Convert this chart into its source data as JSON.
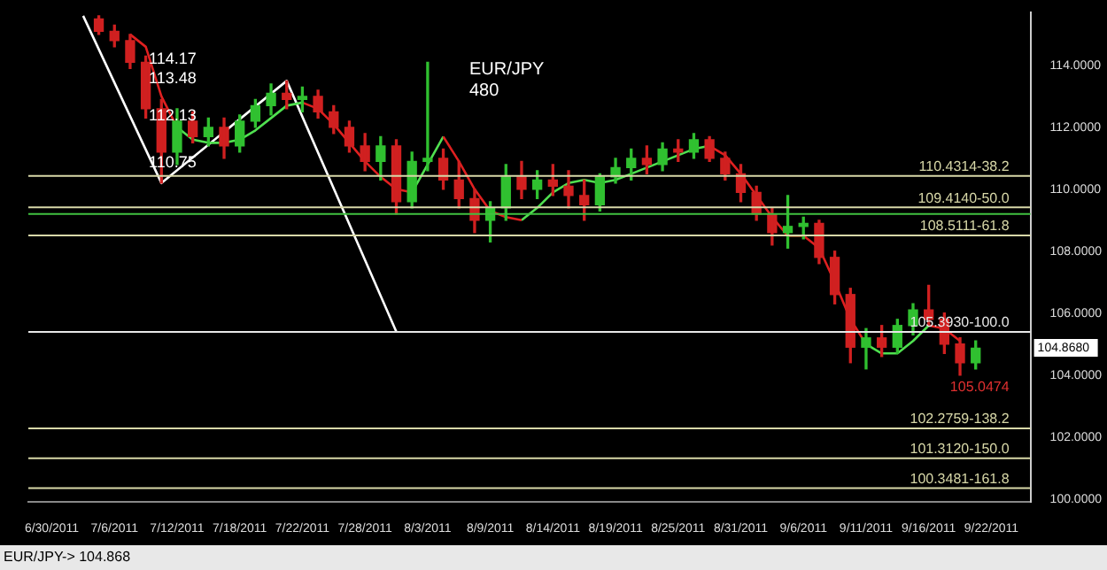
{
  "chart_data": {
    "type": "candlestick",
    "title": "EUR/JPY",
    "subtitle": "480",
    "categories": [
      null,
      "6/30/2011",
      null,
      null,
      null,
      "7/6/2011",
      null,
      null,
      null,
      "7/12/2011",
      null,
      null,
      null,
      "7/18/2011",
      null,
      null,
      null,
      "7/22/2011",
      null,
      null,
      null,
      "7/28/2011",
      null,
      null,
      null,
      "8/3/2011",
      null,
      null,
      null,
      "8/9/2011",
      null,
      null,
      null,
      "8/14/2011",
      null,
      null,
      null,
      "8/19/2011",
      null,
      null,
      null,
      "8/25/2011",
      null,
      null,
      null,
      "8/31/2011",
      null,
      null,
      null,
      "9/6/2011",
      null,
      null,
      null,
      "9/11/2011",
      null,
      null,
      null,
      "9/16/2011",
      null,
      null,
      null,
      "9/22/2011",
      null,
      null
    ],
    "ohlc": [
      null,
      null,
      null,
      null,
      [
        115.5,
        115.6,
        115.0,
        115.1
      ],
      [
        115.1,
        115.3,
        114.6,
        114.8
      ],
      [
        114.8,
        115.0,
        113.9,
        114.1
      ],
      [
        114.1,
        114.3,
        112.3,
        112.6
      ],
      [
        112.6,
        112.9,
        110.2,
        111.2
      ],
      [
        111.2,
        112.6,
        110.8,
        112.2
      ],
      [
        112.2,
        112.5,
        111.5,
        111.7
      ],
      [
        111.7,
        112.3,
        111.4,
        112.0
      ],
      [
        112.0,
        112.3,
        111.0,
        111.4
      ],
      [
        111.4,
        112.4,
        111.2,
        112.2
      ],
      [
        112.2,
        112.9,
        112.0,
        112.7
      ],
      [
        112.7,
        113.4,
        112.4,
        113.1
      ],
      [
        113.1,
        113.5,
        112.6,
        112.9
      ],
      [
        112.9,
        113.3,
        112.5,
        113.0
      ],
      [
        113.0,
        113.2,
        112.3,
        112.5
      ],
      [
        112.5,
        112.7,
        111.8,
        112.0
      ],
      [
        112.0,
        112.2,
        111.2,
        111.4
      ],
      [
        111.4,
        111.8,
        110.6,
        110.9
      ],
      [
        110.9,
        111.7,
        110.3,
        111.4
      ],
      [
        111.4,
        111.6,
        109.2,
        109.6
      ],
      [
        109.6,
        111.2,
        109.4,
        110.9
      ],
      [
        110.9,
        114.1,
        110.6,
        111.0
      ],
      [
        111.0,
        111.3,
        110.0,
        110.3
      ],
      [
        110.3,
        110.9,
        109.4,
        109.7
      ],
      [
        109.7,
        110.0,
        108.6,
        109.0
      ],
      [
        109.0,
        109.6,
        108.3,
        109.4
      ],
      [
        109.4,
        110.8,
        109.0,
        110.4
      ],
      [
        110.4,
        110.9,
        109.7,
        110.0
      ],
      [
        110.0,
        110.6,
        109.7,
        110.3
      ],
      [
        110.3,
        110.8,
        109.8,
        110.1
      ],
      [
        110.1,
        110.6,
        109.4,
        109.8
      ],
      [
        109.8,
        110.3,
        109.0,
        109.5
      ],
      [
        109.5,
        110.5,
        109.3,
        110.4
      ],
      [
        110.4,
        111.0,
        110.2,
        110.7
      ],
      [
        110.7,
        111.3,
        110.3,
        111.0
      ],
      [
        111.0,
        111.4,
        110.5,
        110.8
      ],
      [
        110.8,
        111.5,
        110.6,
        111.3
      ],
      [
        111.3,
        111.6,
        110.9,
        111.2
      ],
      [
        111.2,
        111.8,
        111.0,
        111.6
      ],
      [
        111.6,
        111.7,
        110.9,
        111.0
      ],
      [
        111.0,
        111.2,
        110.3,
        110.5
      ],
      [
        110.5,
        110.8,
        109.6,
        109.9
      ],
      [
        109.9,
        110.1,
        109.0,
        109.2
      ],
      [
        109.2,
        109.4,
        108.2,
        108.6
      ],
      [
        108.6,
        109.8,
        108.1,
        108.8
      ],
      [
        108.8,
        109.1,
        108.4,
        108.9
      ],
      [
        108.9,
        109.0,
        107.6,
        107.8
      ],
      [
        107.8,
        108.0,
        106.3,
        106.6
      ],
      [
        106.6,
        106.8,
        104.4,
        104.9
      ],
      [
        104.9,
        105.5,
        104.2,
        105.2
      ],
      [
        105.2,
        105.6,
        104.6,
        104.9
      ],
      [
        104.9,
        105.8,
        104.7,
        105.6
      ],
      [
        105.6,
        106.3,
        105.3,
        106.1
      ],
      [
        106.1,
        106.9,
        105.6,
        105.8
      ],
      [
        105.8,
        106.0,
        104.7,
        105.0
      ],
      [
        105.0,
        105.2,
        104.0,
        104.4
      ],
      [
        104.4,
        105.1,
        104.2,
        104.87
      ],
      null,
      null,
      null
    ],
    "colors": [
      null,
      null,
      null,
      null,
      "#d02020",
      "#d02020",
      "#d02020",
      "#d02020",
      "#d02020",
      "#30c030",
      "#d02020",
      "#30c030",
      "#d02020",
      "#30c030",
      "#30c030",
      "#30c030",
      "#d02020",
      "#30c030",
      "#d02020",
      "#d02020",
      "#d02020",
      "#d02020",
      "#30c030",
      "#d02020",
      "#30c030",
      "#30c030",
      "#d02020",
      "#d02020",
      "#d02020",
      "#30c030",
      "#30c030",
      "#d02020",
      "#30c030",
      "#d02020",
      "#d02020",
      "#d02020",
      "#30c030",
      "#30c030",
      "#30c030",
      "#d02020",
      "#30c030",
      "#d02020",
      "#30c030",
      "#d02020",
      "#d02020",
      "#d02020",
      "#d02020",
      "#d02020",
      "#30c030",
      "#30c030",
      "#d02020",
      "#d02020",
      "#d02020",
      "#30c030",
      "#d02020",
      "#30c030",
      "#30c030",
      "#d02020",
      "#d02020",
      "#d02020",
      "#30c030",
      null,
      null,
      null
    ],
    "series": [
      {
        "type": "line",
        "color": "#e02020",
        "values": [
          null,
          null,
          null,
          null,
          null,
          null,
          115.0,
          114.6,
          113.0,
          112.0,
          null,
          null,
          null,
          null,
          null,
          null,
          null,
          112.8,
          112.6,
          112.1,
          111.5,
          110.9,
          110.4,
          110.0,
          109.9,
          null,
          111.7,
          110.9,
          110.0,
          109.3,
          109.1,
          109.0,
          null,
          null,
          null,
          null,
          null,
          null,
          null,
          null,
          null,
          null,
          null,
          111.4,
          111.1,
          110.5,
          109.8,
          109.1,
          108.5,
          108.5,
          108.1,
          107.0,
          105.8,
          105.0,
          null,
          null,
          null,
          105.6,
          105.5,
          105.1,
          null,
          null,
          null,
          null
        ]
      },
      {
        "type": "line",
        "color": "#50e050",
        "values": [
          null,
          null,
          null,
          null,
          null,
          null,
          null,
          null,
          null,
          112.0,
          111.6,
          111.5,
          111.5,
          111.6,
          111.9,
          112.3,
          112.7,
          112.8,
          null,
          null,
          null,
          null,
          null,
          null,
          109.9,
          110.8,
          111.7,
          null,
          null,
          null,
          null,
          109.0,
          109.4,
          109.9,
          110.2,
          110.3,
          110.2,
          110.3,
          110.5,
          110.7,
          110.9,
          111.1,
          111.3,
          111.4,
          null,
          null,
          null,
          null,
          108.5,
          108.5,
          null,
          null,
          null,
          105.0,
          104.7,
          104.7,
          105.1,
          105.6,
          null,
          null,
          null,
          null,
          null,
          null
        ]
      },
      {
        "type": "line",
        "color": "#ffffff",
        "values": [
          null,
          null,
          null,
          115.6,
          null,
          null,
          null,
          null,
          110.2,
          null,
          null,
          null,
          null,
          null,
          null,
          null,
          113.5,
          null,
          null,
          null,
          null,
          null,
          null,
          105.4,
          null,
          null,
          null,
          null,
          null,
          null,
          null,
          null,
          null,
          null,
          null,
          null,
          null,
          null,
          null,
          null,
          null,
          null,
          null,
          null,
          null,
          null,
          null,
          null,
          null,
          null,
          null,
          null,
          null,
          null,
          null,
          null,
          null,
          null,
          null,
          null,
          null,
          null,
          null,
          null
        ]
      }
    ],
    "ylim": [
      99.9,
      115.7
    ],
    "yticks": [
      {
        "value": 100,
        "label": "100.0000"
      },
      {
        "value": 102,
        "label": "102.0000"
      },
      {
        "value": 104,
        "label": "104.0000"
      },
      {
        "value": 106,
        "label": "106.0000"
      },
      {
        "value": 108,
        "label": "108.0000"
      },
      {
        "value": 110,
        "label": "110.0000"
      },
      {
        "value": 112,
        "label": "112.0000"
      },
      {
        "value": 114,
        "label": "114.0000"
      }
    ],
    "ref_lines": [
      {
        "axis": "y",
        "value": 110.4314,
        "label": "110.4314-38.2",
        "color": "#d8d8a8"
      },
      {
        "axis": "y",
        "value": 109.414,
        "label": "109.4140-50.0",
        "color": "#d8d8a8"
      },
      {
        "axis": "y",
        "value": 108.5111,
        "label": "108.5111-61.8",
        "color": "#d8d8a8"
      },
      {
        "axis": "y",
        "value": 105.393,
        "label": "105.3930-100.0",
        "color": "#e8e8e8"
      },
      {
        "axis": "y",
        "value": 102.2759,
        "label": "102.2759-138.2",
        "color": "#d8d8a8"
      },
      {
        "axis": "y",
        "value": 101.312,
        "label": "101.3120-150.0",
        "color": "#d8d8a8"
      },
      {
        "axis": "y",
        "value": 100.3481,
        "label": "100.3481-161.8",
        "color": "#d8d8a8"
      },
      {
        "axis": "y",
        "value": 109.2,
        "label": null,
        "color": "#40c040"
      }
    ],
    "annotations": [
      "114.17",
      "113.48",
      "112.13",
      "110.75",
      "105.0474",
      "104.8680",
      "EUR/JPY-> 104.868"
    ],
    "legend": false,
    "grid": false
  }
}
